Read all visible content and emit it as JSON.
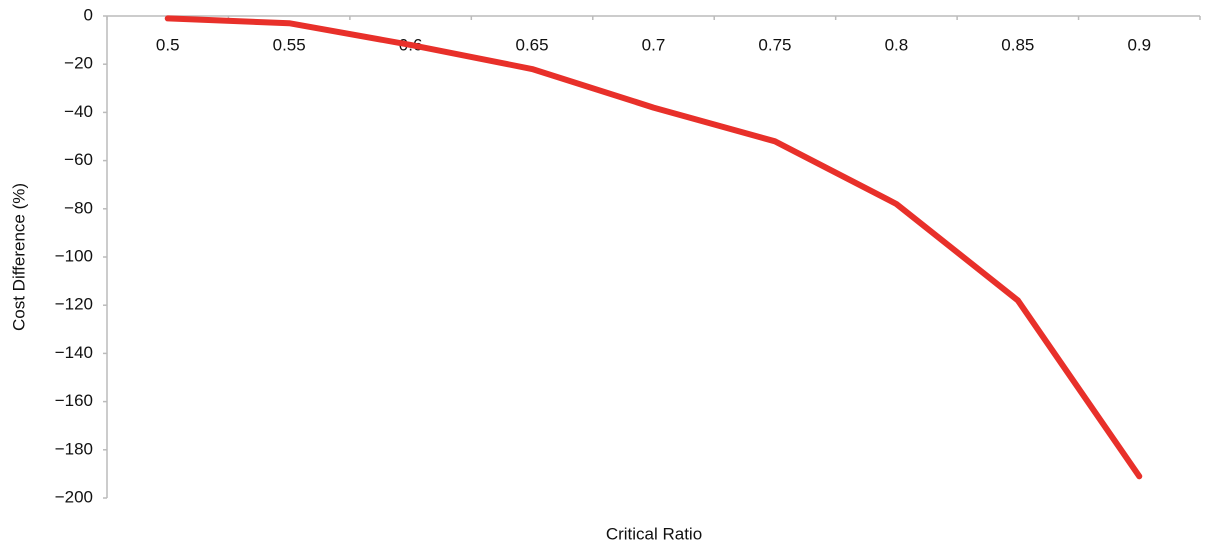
{
  "chart_data": {
    "type": "line",
    "x_label": "Critical Ratio",
    "y_label": "Cost Difference (%)",
    "categories": [
      "0.5",
      "0.55",
      "0.6",
      "0.65",
      "0.7",
      "0.75",
      "0.8",
      "0.85",
      "0.9"
    ],
    "series": [
      {
        "color": "#e8302a",
        "values": [
          -1,
          -3,
          -12,
          -22,
          -38,
          -52,
          -78,
          -118,
          -191
        ]
      }
    ],
    "ylim": [
      -200,
      0
    ],
    "yticks": [
      0,
      {
        "value": -20,
        "label": "−20"
      },
      {
        "value": -40,
        "label": "−40"
      },
      {
        "value": -60,
        "label": "−60"
      },
      {
        "value": -80,
        "label": "−80"
      },
      {
        "value": -100,
        "label": "−100"
      },
      {
        "value": -120,
        "label": "−120"
      },
      {
        "value": -140,
        "label": "−140"
      },
      {
        "value": -160,
        "label": "−160"
      },
      {
        "value": -180,
        "label": "−180"
      },
      {
        "value": -200,
        "label": "−200"
      }
    ],
    "grid": false
  }
}
